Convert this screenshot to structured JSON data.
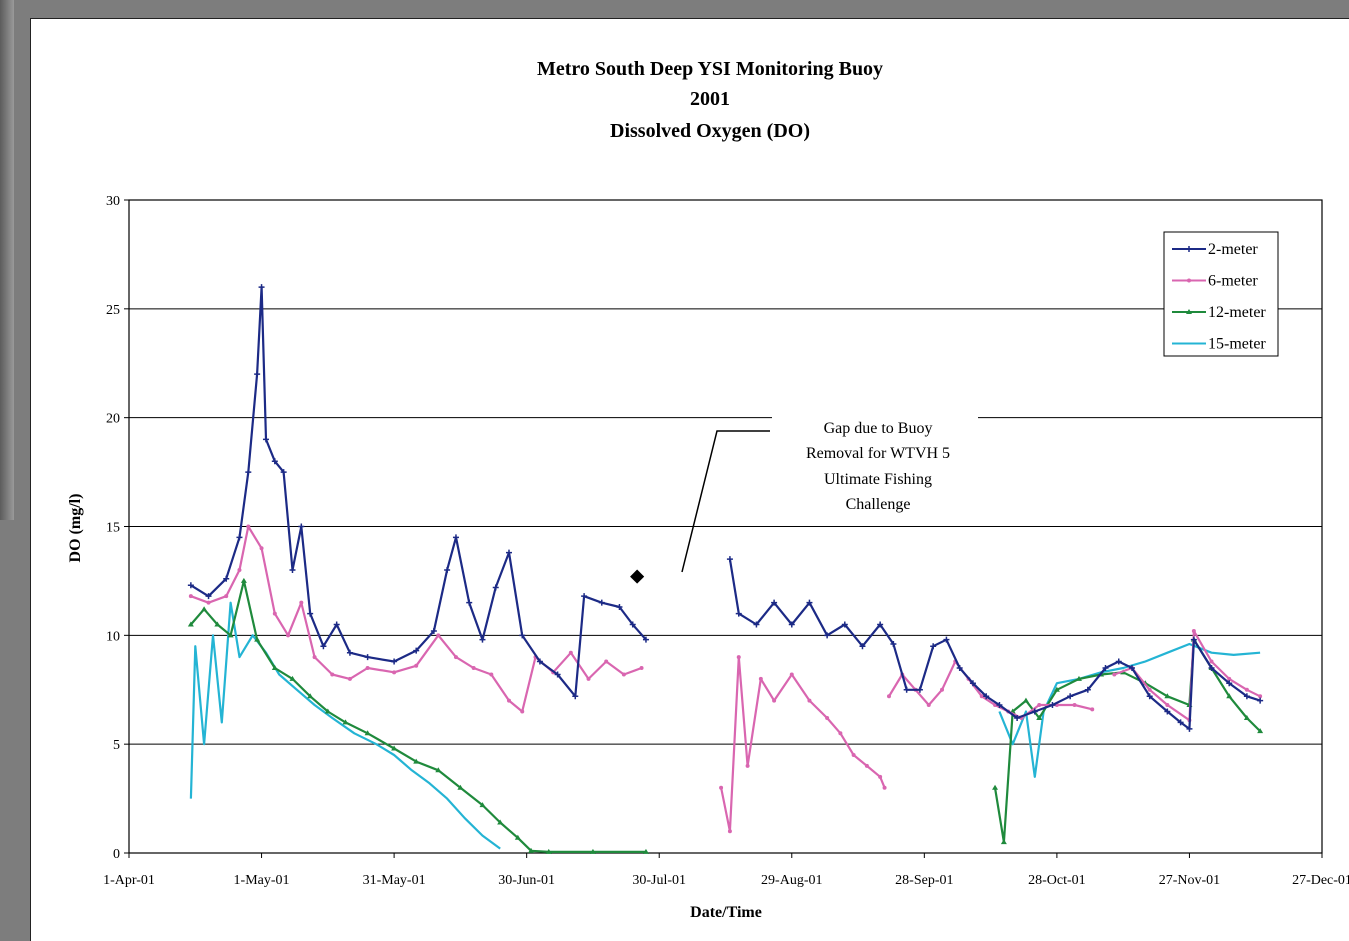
{
  "chart_data": {
    "type": "line",
    "title_lines": [
      "Metro South Deep YSI Monitoring Buoy",
      "2001",
      "Dissolved Oxygen (DO)"
    ],
    "xlabel": "Date/Time",
    "ylabel": "DO (mg/l)",
    "ylim": [
      0,
      30
    ],
    "yticks": [
      "0",
      "5",
      "10",
      "15",
      "20",
      "25",
      "30"
    ],
    "xlim": [
      "2001-04-01",
      "2001-12-27"
    ],
    "xticks": [
      "1-Apr-01",
      "1-May-01",
      "31-May-01",
      "30-Jun-01",
      "30-Jul-01",
      "29-Aug-01",
      "28-Sep-01",
      "28-Oct-01",
      "27-Nov-01",
      "27-Dec-01"
    ],
    "grid": "horizontal",
    "legend_position": "top-right",
    "annotation": {
      "lines": [
        "Gap due to Buoy",
        "Removal for WTVH 5",
        "Ultimate Fishing",
        "Challenge"
      ],
      "point": {
        "x": "2001-07-25",
        "y": 12.7
      }
    },
    "series": [
      {
        "name": "2-meter",
        "color": "#1c2a86",
        "marker": "plus",
        "segments": [
          [
            [
              "2001-04-15",
              12.3
            ],
            [
              "2001-04-19",
              11.8
            ],
            [
              "2001-04-23",
              12.6
            ],
            [
              "2001-04-26",
              14.5
            ],
            [
              "2001-04-28",
              17.5
            ],
            [
              "2001-04-30",
              22
            ],
            [
              "2001-05-01",
              26
            ],
            [
              "2001-05-02",
              19
            ],
            [
              "2001-05-04",
              18
            ],
            [
              "2001-05-06",
              17.5
            ],
            [
              "2001-05-08",
              13
            ],
            [
              "2001-05-10",
              15
            ],
            [
              "2001-05-12",
              11
            ],
            [
              "2001-05-15",
              9.5
            ],
            [
              "2001-05-18",
              10.5
            ],
            [
              "2001-05-21",
              9.2
            ],
            [
              "2001-05-25",
              9
            ],
            [
              "2001-05-31",
              8.8
            ],
            [
              "2001-06-05",
              9.3
            ],
            [
              "2001-06-09",
              10.2
            ],
            [
              "2001-06-12",
              13
            ],
            [
              "2001-06-14",
              14.5
            ],
            [
              "2001-06-17",
              11.5
            ],
            [
              "2001-06-20",
              9.8
            ],
            [
              "2001-06-23",
              12.2
            ],
            [
              "2001-06-26",
              13.8
            ],
            [
              "2001-06-29",
              10
            ],
            [
              "2001-07-03",
              8.8
            ],
            [
              "2001-07-07",
              8.2
            ],
            [
              "2001-07-11",
              7.2
            ],
            [
              "2001-07-13",
              11.8
            ],
            [
              "2001-07-17",
              11.5
            ],
            [
              "2001-07-21",
              11.3
            ],
            [
              "2001-07-24",
              10.5
            ],
            [
              "2001-07-27",
              9.8
            ]
          ],
          [
            [
              "2001-08-15",
              13.5
            ],
            [
              "2001-08-17",
              11
            ],
            [
              "2001-08-21",
              10.5
            ],
            [
              "2001-08-25",
              11.5
            ],
            [
              "2001-08-29",
              10.5
            ],
            [
              "2001-09-02",
              11.5
            ],
            [
              "2001-09-06",
              10
            ],
            [
              "2001-09-10",
              10.5
            ],
            [
              "2001-09-14",
              9.5
            ],
            [
              "2001-09-18",
              10.5
            ],
            [
              "2001-09-21",
              9.6
            ],
            [
              "2001-09-24",
              7.5
            ],
            [
              "2001-09-27",
              7.5
            ],
            [
              "2001-09-30",
              9.5
            ],
            [
              "2001-10-03",
              9.8
            ],
            [
              "2001-10-06",
              8.5
            ],
            [
              "2001-10-09",
              7.8
            ],
            [
              "2001-10-12",
              7.2
            ],
            [
              "2001-10-15",
              6.8
            ],
            [
              "2001-10-19",
              6.2
            ],
            [
              "2001-10-23",
              6.5
            ],
            [
              "2001-10-27",
              6.8
            ],
            [
              "2001-10-31",
              7.2
            ],
            [
              "2001-11-04",
              7.5
            ],
            [
              "2001-11-08",
              8.5
            ],
            [
              "2001-11-11",
              8.8
            ],
            [
              "2001-11-14",
              8.5
            ],
            [
              "2001-11-18",
              7.2
            ],
            [
              "2001-11-22",
              6.5
            ],
            [
              "2001-11-25",
              6
            ],
            [
              "2001-11-27",
              5.7
            ],
            [
              "2001-11-28",
              9.8
            ],
            [
              "2001-12-02",
              8.5
            ],
            [
              "2001-12-06",
              7.8
            ],
            [
              "2001-12-10",
              7.2
            ],
            [
              "2001-12-13",
              7
            ]
          ]
        ]
      },
      {
        "name": "6-meter",
        "color": "#d966b0",
        "marker": "dot",
        "segments": [
          [
            [
              "2001-04-15",
              11.8
            ],
            [
              "2001-04-19",
              11.5
            ],
            [
              "2001-04-23",
              11.8
            ],
            [
              "2001-04-26",
              13
            ],
            [
              "2001-04-28",
              15
            ],
            [
              "2001-05-01",
              14
            ],
            [
              "2001-05-04",
              11
            ],
            [
              "2001-05-07",
              10
            ],
            [
              "2001-05-10",
              11.5
            ],
            [
              "2001-05-13",
              9
            ],
            [
              "2001-05-17",
              8.2
            ],
            [
              "2001-05-21",
              8
            ],
            [
              "2001-05-25",
              8.5
            ],
            [
              "2001-05-31",
              8.3
            ],
            [
              "2001-06-05",
              8.6
            ],
            [
              "2001-06-10",
              10
            ],
            [
              "2001-06-14",
              9
            ],
            [
              "2001-06-18",
              8.5
            ],
            [
              "2001-06-22",
              8.2
            ],
            [
              "2001-06-26",
              7
            ],
            [
              "2001-06-29",
              6.5
            ],
            [
              "2001-07-02",
              9
            ],
            [
              "2001-07-06",
              8.3
            ],
            [
              "2001-07-10",
              9.2
            ],
            [
              "2001-07-14",
              8
            ],
            [
              "2001-07-18",
              8.8
            ],
            [
              "2001-07-22",
              8.2
            ],
            [
              "2001-07-26",
              8.5
            ]
          ],
          [
            [
              "2001-08-13",
              3
            ],
            [
              "2001-08-15",
              1
            ],
            [
              "2001-08-17",
              9
            ],
            [
              "2001-08-19",
              4
            ],
            [
              "2001-08-22",
              8
            ],
            [
              "2001-08-25",
              7
            ],
            [
              "2001-08-29",
              8.2
            ],
            [
              "2001-09-02",
              7
            ],
            [
              "2001-09-06",
              6.2
            ],
            [
              "2001-09-09",
              5.5
            ],
            [
              "2001-09-12",
              4.5
            ],
            [
              "2001-09-15",
              4
            ],
            [
              "2001-09-18",
              3.5
            ],
            [
              "2001-09-19",
              3
            ]
          ],
          [
            [
              "2001-09-20",
              7.2
            ],
            [
              "2001-09-23",
              8.2
            ],
            [
              "2001-09-26",
              7.5
            ],
            [
              "2001-09-29",
              6.8
            ],
            [
              "2001-10-02",
              7.5
            ],
            [
              "2001-10-05",
              8.8
            ],
            [
              "2001-10-08",
              8
            ],
            [
              "2001-10-11",
              7.2
            ],
            [
              "2001-10-14",
              6.8
            ],
            [
              "2001-10-17",
              6.5
            ],
            [
              "2001-10-20",
              6.2
            ],
            [
              "2001-10-24",
              6.8
            ],
            [
              "2001-10-28",
              6.8
            ],
            [
              "2001-11-01",
              6.8
            ],
            [
              "2001-11-05",
              6.6
            ]
          ],
          [
            [
              "2001-11-10",
              8.2
            ],
            [
              "2001-11-14",
              8.5
            ],
            [
              "2001-11-18",
              7.5
            ],
            [
              "2001-11-22",
              6.8
            ],
            [
              "2001-11-27",
              6.1
            ],
            [
              "2001-11-28",
              10.2
            ],
            [
              "2001-12-02",
              8.8
            ],
            [
              "2001-12-06",
              8
            ],
            [
              "2001-12-10",
              7.5
            ],
            [
              "2001-12-13",
              7.2
            ]
          ]
        ]
      },
      {
        "name": "12-meter",
        "color": "#1f8a3c",
        "marker": "triangle",
        "segments": [
          [
            [
              "2001-04-15",
              10.5
            ],
            [
              "2001-04-18",
              11.2
            ],
            [
              "2001-04-21",
              10.5
            ],
            [
              "2001-04-24",
              10
            ],
            [
              "2001-04-27",
              12.5
            ],
            [
              "2001-04-30",
              9.8
            ],
            [
              "2001-05-04",
              8.5
            ],
            [
              "2001-05-08",
              8
            ],
            [
              "2001-05-12",
              7.2
            ],
            [
              "2001-05-16",
              6.5
            ],
            [
              "2001-05-20",
              6
            ],
            [
              "2001-05-25",
              5.5
            ],
            [
              "2001-05-31",
              4.8
            ],
            [
              "2001-06-05",
              4.2
            ],
            [
              "2001-06-10",
              3.8
            ],
            [
              "2001-06-15",
              3
            ],
            [
              "2001-06-20",
              2.2
            ],
            [
              "2001-06-24",
              1.4
            ],
            [
              "2001-06-28",
              0.7
            ],
            [
              "2001-07-01",
              0.1
            ],
            [
              "2001-07-05",
              0.05
            ],
            [
              "2001-07-15",
              0.05
            ],
            [
              "2001-07-27",
              0.05
            ]
          ],
          [
            [
              "2001-10-14",
              3
            ],
            [
              "2001-10-16",
              0.5
            ],
            [
              "2001-10-18",
              6.5
            ],
            [
              "2001-10-21",
              7
            ],
            [
              "2001-10-24",
              6.2
            ],
            [
              "2001-10-28",
              7.5
            ],
            [
              "2001-11-02",
              8
            ],
            [
              "2001-11-07",
              8.2
            ],
            [
              "2001-11-12",
              8.3
            ],
            [
              "2001-11-17",
              7.8
            ],
            [
              "2001-11-22",
              7.2
            ],
            [
              "2001-11-27",
              6.8
            ],
            [
              "2001-11-28",
              9.8
            ],
            [
              "2001-12-02",
              8.5
            ],
            [
              "2001-12-06",
              7.2
            ],
            [
              "2001-12-10",
              6.2
            ],
            [
              "2001-12-13",
              5.6
            ]
          ]
        ]
      },
      {
        "name": "15-meter",
        "color": "#24b4d4",
        "marker": "none",
        "segments": [
          [
            [
              "2001-04-15",
              2.5
            ],
            [
              "2001-04-16",
              9.5
            ],
            [
              "2001-04-18",
              5
            ],
            [
              "2001-04-20",
              10
            ],
            [
              "2001-04-22",
              6
            ],
            [
              "2001-04-24",
              11.5
            ],
            [
              "2001-04-26",
              9
            ],
            [
              "2001-04-29",
              10
            ],
            [
              "2001-05-02",
              9.2
            ],
            [
              "2001-05-05",
              8.2
            ],
            [
              "2001-05-09",
              7.5
            ],
            [
              "2001-05-13",
              6.8
            ],
            [
              "2001-05-17",
              6.2
            ],
            [
              "2001-05-22",
              5.5
            ],
            [
              "2001-05-27",
              5
            ],
            [
              "2001-05-31",
              4.5
            ],
            [
              "2001-06-04",
              3.8
            ],
            [
              "2001-06-08",
              3.2
            ],
            [
              "2001-06-12",
              2.5
            ],
            [
              "2001-06-16",
              1.6
            ],
            [
              "2001-06-20",
              0.8
            ],
            [
              "2001-06-24",
              0.2
            ]
          ],
          [
            [
              "2001-10-15",
              6.5
            ],
            [
              "2001-10-18",
              5
            ],
            [
              "2001-10-21",
              6.5
            ],
            [
              "2001-10-23",
              3.5
            ],
            [
              "2001-10-25",
              6.5
            ],
            [
              "2001-10-28",
              7.8
            ],
            [
              "2001-11-02",
              8
            ],
            [
              "2001-11-07",
              8.3
            ],
            [
              "2001-11-12",
              8.5
            ],
            [
              "2001-11-17",
              8.8
            ],
            [
              "2001-11-22",
              9.2
            ],
            [
              "2001-11-27",
              9.6
            ],
            [
              "2001-12-02",
              9.2
            ],
            [
              "2001-12-07",
              9.1
            ],
            [
              "2001-12-13",
              9.2
            ]
          ]
        ]
      }
    ]
  }
}
